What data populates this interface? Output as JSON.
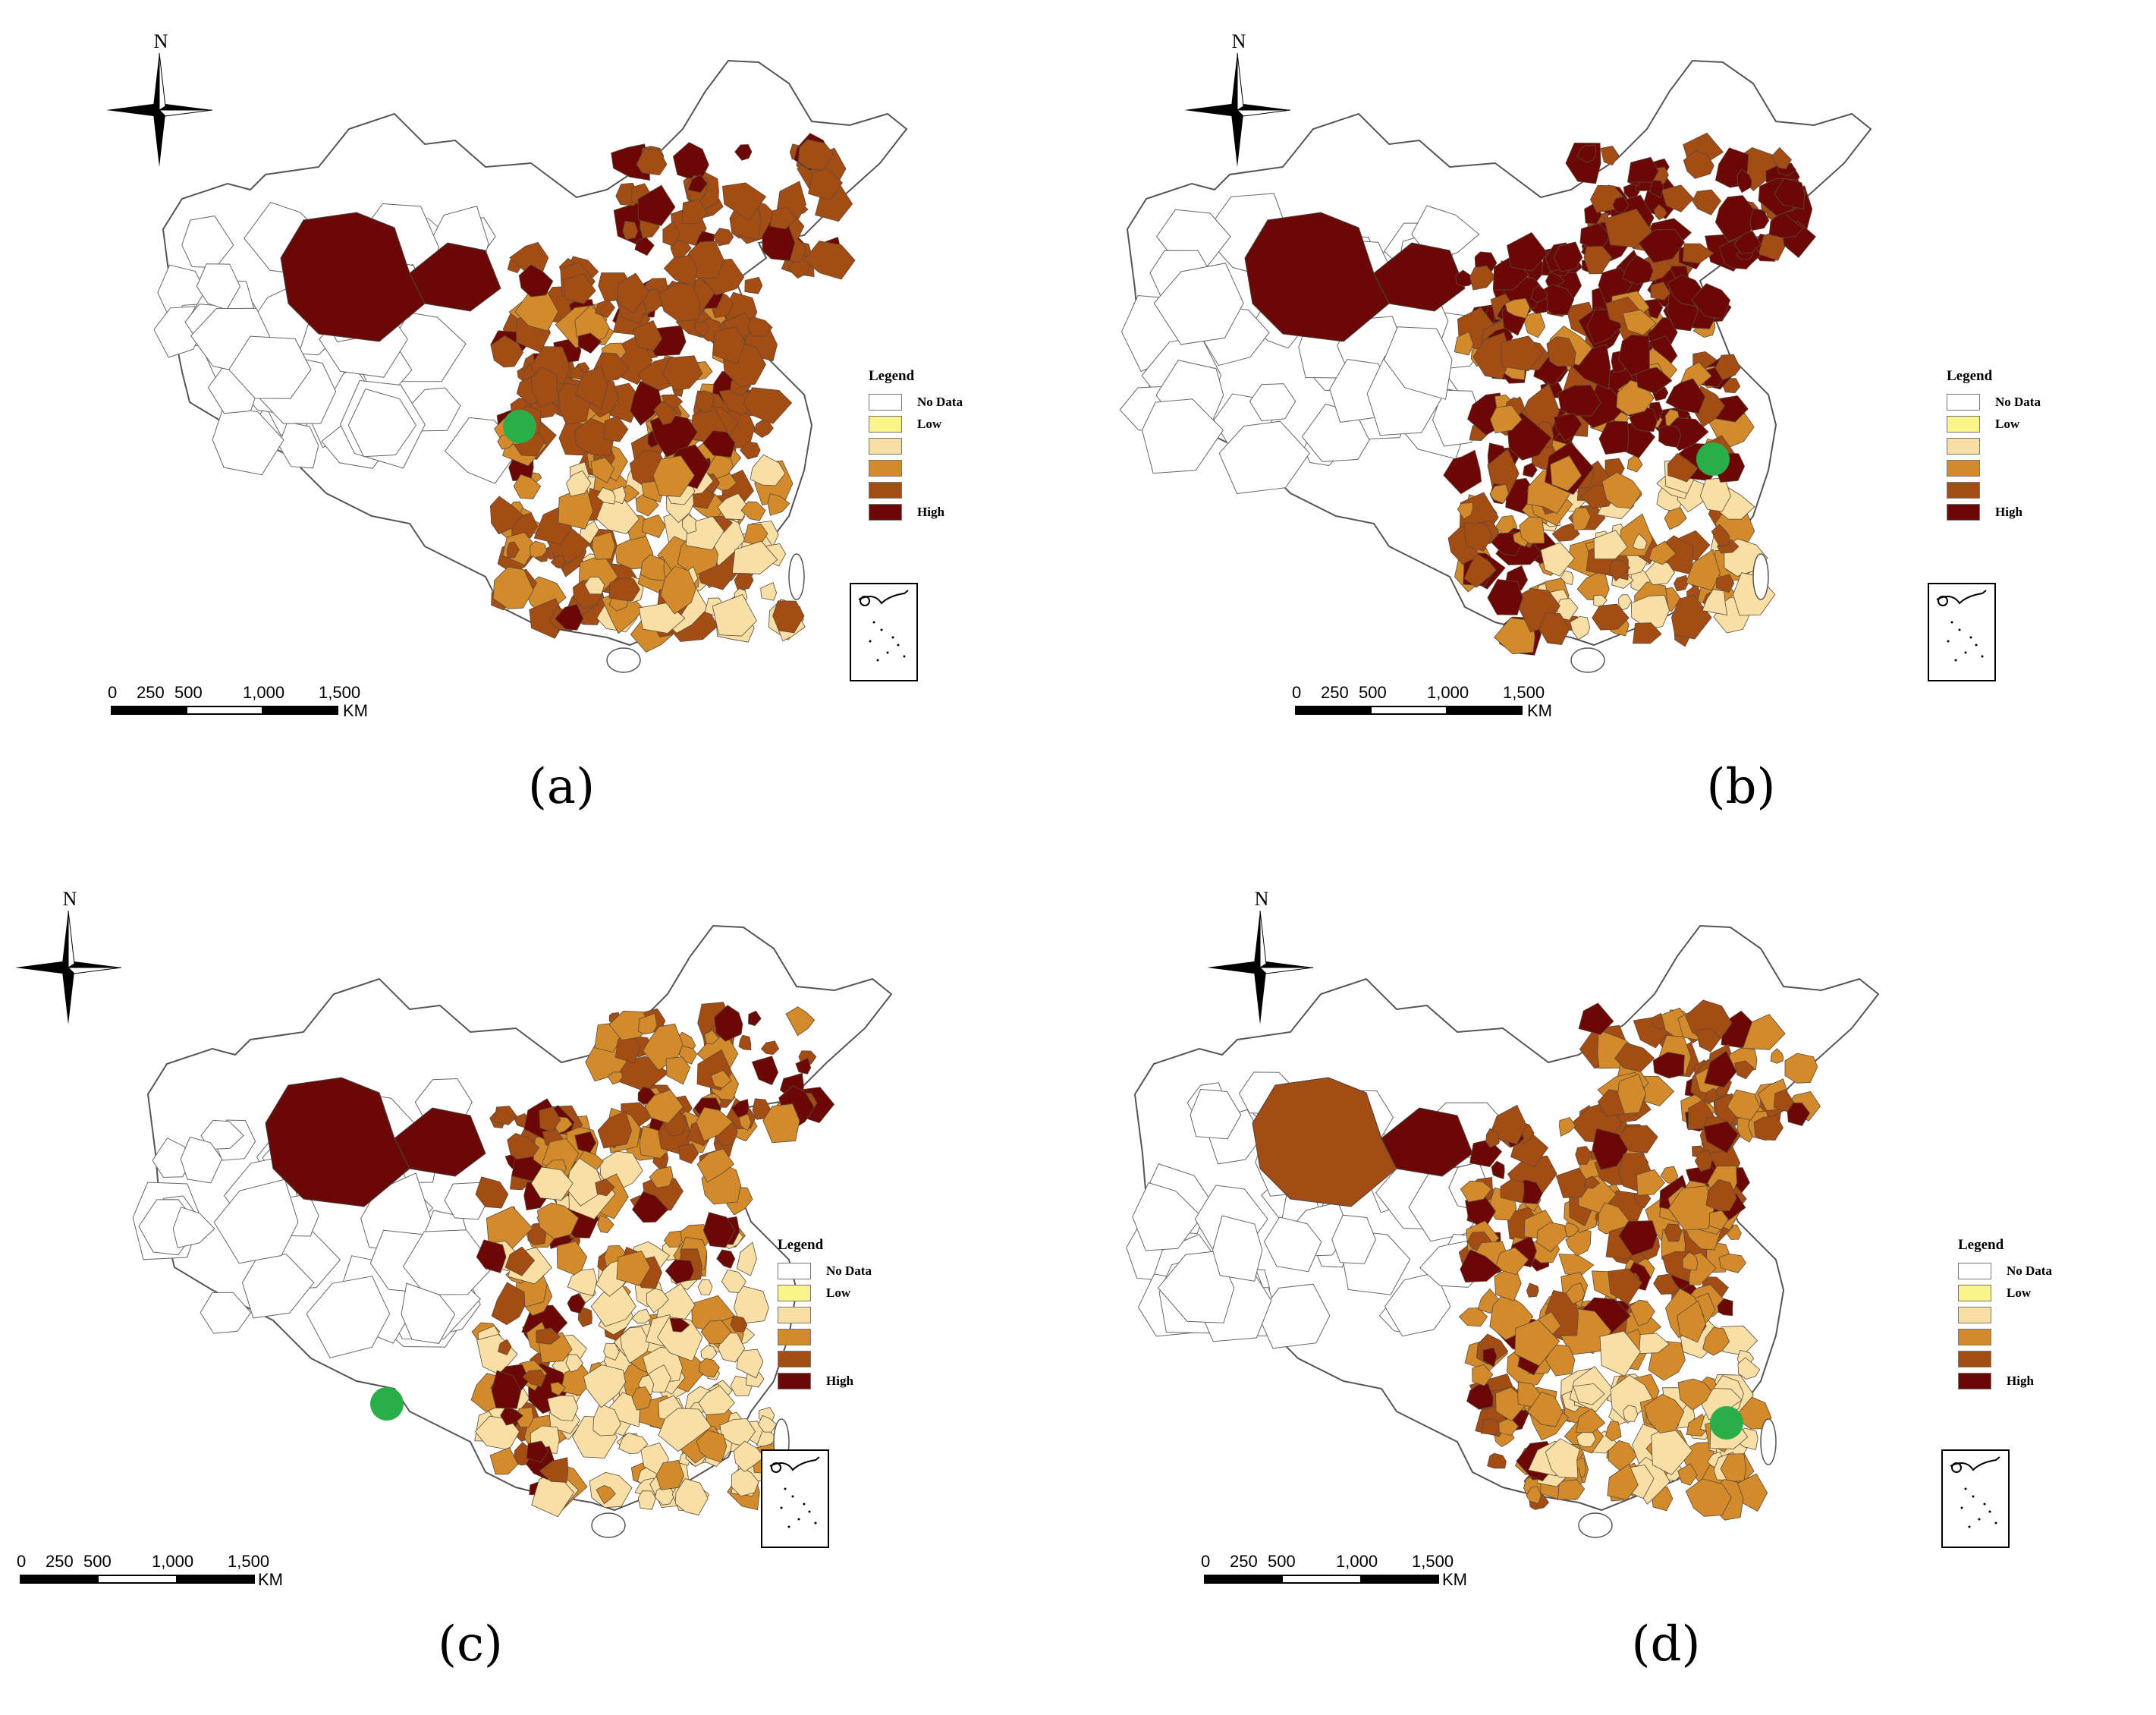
{
  "legend": {
    "title": "Legend",
    "classes": [
      {
        "label": "No Data",
        "color": "#ffffff"
      },
      {
        "label": "Low",
        "color": "#f8f48a"
      },
      {
        "label": "",
        "color": "#f7dfa5"
      },
      {
        "label": "",
        "color": "#d38a2b"
      },
      {
        "label": "",
        "color": "#a34c14"
      },
      {
        "label": "High",
        "color": "#6b0705"
      }
    ]
  },
  "north_label": "N",
  "scale": {
    "ticks": [
      "0",
      "250",
      "500",
      "1,000",
      "1,500"
    ],
    "unit": "KM"
  },
  "marker_color": "#2aae4a",
  "panels": [
    {
      "caption": "(a)",
      "palette": [
        1,
        2,
        3,
        4,
        4,
        5
      ],
      "hot_west": true
    },
    {
      "caption": "(b)",
      "palette": [
        1,
        2,
        3,
        4,
        5,
        5
      ],
      "hot_west": true
    },
    {
      "caption": "(c)",
      "palette": [
        1,
        2,
        2,
        3,
        4,
        5
      ],
      "hot_west": true
    },
    {
      "caption": "(d)",
      "palette": [
        1,
        2,
        3,
        3,
        4,
        5
      ],
      "hot_west": false
    }
  ]
}
